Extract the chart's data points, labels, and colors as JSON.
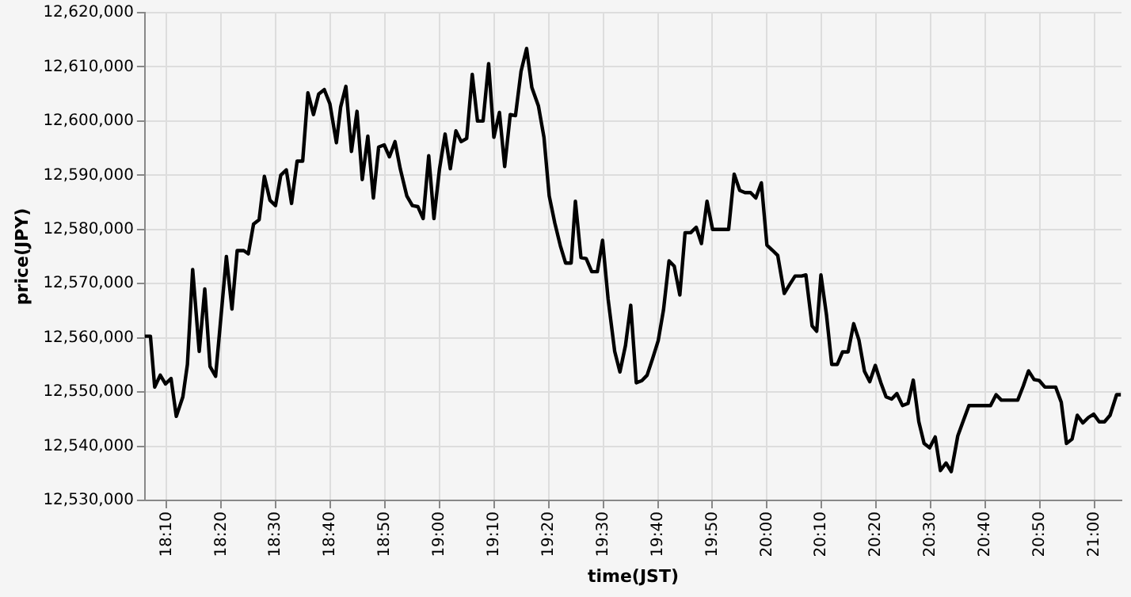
{
  "chart_data": {
    "type": "line",
    "xlabel": "time(JST)",
    "ylabel": "price(JPY)",
    "color": "#000000",
    "x": [
      18.1,
      18.117,
      18.13,
      18.147,
      18.163,
      18.18,
      18.196,
      18.216,
      18.23,
      18.246,
      18.266,
      18.283,
      18.299,
      18.316,
      18.349,
      18.366,
      18.382,
      18.402,
      18.416,
      18.432,
      18.449,
      18.465,
      18.482,
      18.499,
      18.515,
      18.532,
      18.548,
      18.565,
      18.582,
      18.598,
      18.615,
      18.631,
      18.648,
      18.665,
      18.685,
      18.698,
      18.714,
      18.731,
      18.748,
      18.764,
      18.781,
      18.798,
      18.814,
      18.831,
      18.847,
      18.864,
      18.88,
      18.9,
      18.917,
      18.934,
      18.95,
      18.967,
      18.983,
      19.0,
      19.017,
      19.033,
      19.05,
      19.066,
      19.083,
      19.1,
      19.116,
      19.133,
      19.15,
      19.166,
      19.183,
      19.199,
      19.216,
      19.232,
      19.249,
      19.266,
      19.282,
      19.302,
      19.319,
      19.335,
      19.352,
      19.369,
      19.385,
      19.402,
      19.415,
      19.432,
      19.448,
      19.465,
      19.482,
      19.498,
      19.515,
      19.535,
      19.551,
      19.568,
      19.584,
      19.601,
      19.618,
      19.634,
      19.651,
      19.668,
      19.684,
      19.701,
      19.717,
      19.734,
      19.75,
      19.767,
      19.784,
      19.8,
      19.817,
      19.834,
      19.85,
      19.867,
      19.883,
      19.9,
      19.917,
      19.933,
      19.95,
      19.966,
      19.983,
      20.0,
      20.016,
      20.033,
      20.053,
      20.069,
      20.086,
      20.106,
      20.119,
      20.138,
      20.152,
      20.165,
      20.182,
      20.198,
      20.215,
      20.231,
      20.248,
      20.265,
      20.281,
      20.298,
      20.314,
      20.331,
      20.348,
      20.364,
      20.381,
      20.397,
      20.414,
      20.431,
      20.447,
      20.464,
      20.48,
      20.497,
      20.514,
      20.53,
      20.547,
      20.563,
      20.583,
      20.6,
      20.617,
      20.633,
      20.65,
      20.666,
      20.683,
      20.7,
      20.716,
      20.733,
      20.749,
      20.766,
      20.783,
      20.799,
      20.816,
      20.832,
      20.849,
      20.866,
      20.882,
      20.899,
      20.915,
      20.932,
      20.948,
      20.965,
      20.982,
      20.998,
      21.015,
      21.031,
      21.048,
      21.068,
      21.081
    ],
    "values": [
      12560300,
      12560300,
      12550900,
      12553100,
      12551500,
      12552500,
      12545500,
      12549100,
      12555100,
      12572600,
      12557500,
      12569000,
      12554700,
      12552900,
      12575000,
      12565300,
      12576100,
      12576100,
      12575500,
      12581000,
      12581800,
      12589800,
      12585400,
      12584400,
      12590000,
      12591000,
      12584800,
      12592600,
      12592600,
      12605200,
      12601200,
      12605000,
      12605800,
      12603200,
      12596000,
      12602600,
      12606400,
      12594400,
      12601800,
      12589200,
      12597200,
      12585800,
      12595200,
      12595600,
      12593400,
      12596200,
      12591200,
      12586200,
      12584400,
      12584200,
      12582000,
      12593600,
      12582000,
      12591200,
      12597600,
      12591200,
      12598200,
      12596200,
      12596800,
      12608600,
      12600000,
      12600000,
      12610600,
      12597000,
      12601600,
      12591600,
      12601200,
      12601000,
      12609200,
      12613400,
      12606200,
      12602800,
      12597000,
      12586200,
      12581200,
      12577000,
      12573800,
      12573800,
      12585200,
      12574800,
      12574600,
      12572200,
      12572200,
      12578000,
      12567100,
      12557500,
      12553700,
      12558600,
      12566000,
      12551700,
      12552100,
      12553100,
      12556200,
      12559500,
      12565100,
      12574200,
      12573200,
      12567900,
      12579400,
      12579400,
      12580400,
      12577400,
      12585200,
      12580000,
      12580000,
      12580000,
      12580000,
      12590200,
      12587200,
      12586800,
      12586800,
      12585800,
      12588600,
      12577100,
      12576200,
      12575200,
      12568200,
      12569800,
      12571400,
      12571400,
      12571600,
      12562200,
      12561200,
      12571600,
      12564200,
      12555100,
      12555100,
      12557400,
      12557400,
      12562600,
      12559600,
      12553800,
      12551900,
      12554900,
      12551700,
      12549100,
      12548700,
      12549700,
      12547500,
      12547900,
      12552200,
      12544500,
      12540500,
      12539700,
      12541700,
      12535500,
      12536900,
      12535300,
      12541900,
      12544700,
      12547500,
      12547500,
      12547500,
      12547500,
      12547500,
      12549500,
      12548500,
      12548500,
      12548500,
      12548500,
      12551100,
      12553900,
      12552300,
      12552100,
      12550900,
      12550900,
      12550900,
      12548100,
      12540500,
      12541300,
      12545700,
      12544300,
      12545300,
      12545900,
      12544500,
      12544500,
      12545700,
      12549500,
      12549500
    ],
    "xlim": [
      18.1,
      21.083
    ],
    "xticks": [
      {
        "value": 18.1667,
        "label": "18:10"
      },
      {
        "value": 18.3333,
        "label": "18:20"
      },
      {
        "value": 18.5,
        "label": "18:30"
      },
      {
        "value": 18.6667,
        "label": "18:40"
      },
      {
        "value": 18.8333,
        "label": "18:50"
      },
      {
        "value": 19,
        "label": "19:00"
      },
      {
        "value": 19.1667,
        "label": "19:10"
      },
      {
        "value": 19.3333,
        "label": "19:20"
      },
      {
        "value": 19.5,
        "label": "19:30"
      },
      {
        "value": 19.6667,
        "label": "19:40"
      },
      {
        "value": 19.8333,
        "label": "19:50"
      },
      {
        "value": 20,
        "label": "20:00"
      },
      {
        "value": 20.1667,
        "label": "20:10"
      },
      {
        "value": 20.3333,
        "label": "20:20"
      },
      {
        "value": 20.5,
        "label": "20:30"
      },
      {
        "value": 20.6667,
        "label": "20:40"
      },
      {
        "value": 20.8333,
        "label": "20:50"
      },
      {
        "value": 21,
        "label": "21:00"
      }
    ],
    "ylim": [
      12530000,
      12620000
    ],
    "yticks": [
      {
        "value": 12530000,
        "label": "12,530,000"
      },
      {
        "value": 12540000,
        "label": "12,540,000"
      },
      {
        "value": 12550000,
        "label": "12,550,000"
      },
      {
        "value": 12560000,
        "label": "12,560,000"
      },
      {
        "value": 12570000,
        "label": "12,570,000"
      },
      {
        "value": 12580000,
        "label": "12,580,000"
      },
      {
        "value": 12590000,
        "label": "12,590,000"
      },
      {
        "value": 12600000,
        "label": "12,600,000"
      },
      {
        "value": 12610000,
        "label": "12,610,000"
      },
      {
        "value": 12620000,
        "label": "12,620,000"
      }
    ],
    "grid": true
  }
}
